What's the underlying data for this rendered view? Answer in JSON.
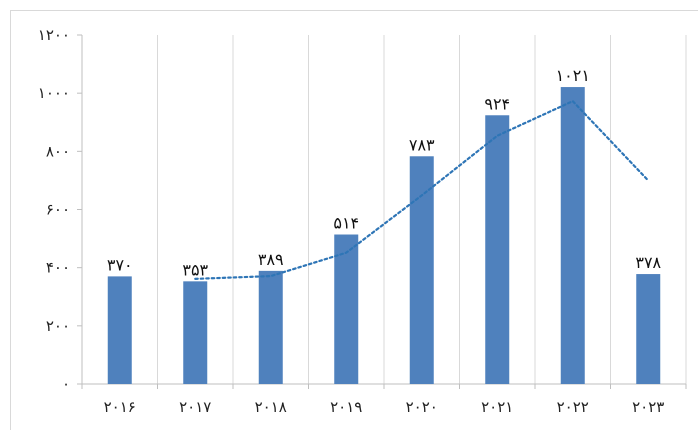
{
  "chart_data": {
    "type": "bar",
    "categories": [
      "۲۰۱۶",
      "۲۰۱۷",
      "۲۰۱۸",
      "۲۰۱۹",
      "۲۰۲۰",
      "۲۰۲۱",
      "۲۰۲۲",
      "۲۰۲۳"
    ],
    "values": [
      370,
      353,
      389,
      514,
      783,
      924,
      1021,
      378
    ],
    "data_labels": [
      "۳۷۰",
      "۳۵۳",
      "۳۸۹",
      "۵۱۴",
      "۷۸۳",
      "۹۲۴",
      "۱۰۲۱",
      "۳۷۸"
    ],
    "trendline": {
      "type": "moving-average",
      "period": 2,
      "style": "dotted",
      "color": "#2e75b6"
    },
    "title": "",
    "xlabel": "",
    "ylabel": "",
    "ylim": [
      0,
      1200
    ],
    "yticks": [
      0,
      200,
      400,
      600,
      800,
      1000,
      1200
    ],
    "ytick_labels": [
      "۰",
      "۲۰۰",
      "۴۰۰",
      "۶۰۰",
      "۸۰۰",
      "۱۰۰۰",
      "۱۲۰۰"
    ],
    "grid": "vertical",
    "legend": "none",
    "bar_color": "#4f81bd"
  }
}
